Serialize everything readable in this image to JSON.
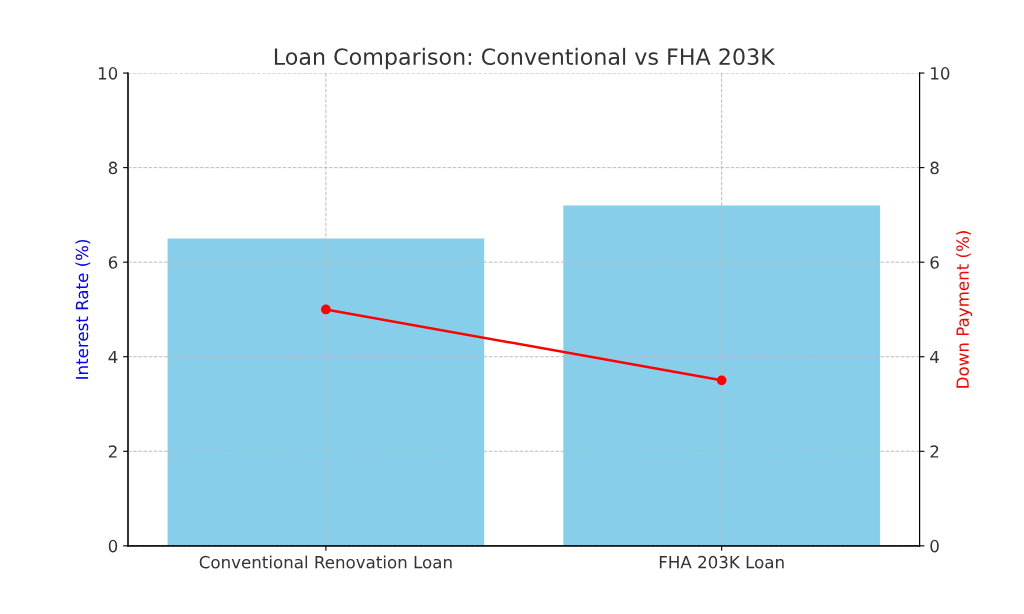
{
  "chart_data": {
    "type": "bar",
    "title": "Loan Comparison: Conventional vs FHA 203K",
    "categories": [
      "Conventional Renovation Loan",
      "FHA 203K Loan"
    ],
    "ylabel": "Interest Rate (%)",
    "y2label": "Down Payment (%)",
    "series": [
      {
        "name": null,
        "color": "#87ceeb",
        "values": [
          6.5,
          7.2
        ]
      },
      {
        "name": null,
        "type": "line",
        "axis": "y2",
        "color": "#ff0000",
        "values": [
          5.0,
          3.5
        ],
        "marker": "circle",
        "line_style": "solid"
      }
    ],
    "ylim": [
      0,
      10
    ],
    "yticks": [
      0,
      2,
      4,
      6,
      8,
      10
    ],
    "y2lim": [
      0,
      10
    ],
    "y2ticks": [
      0,
      2,
      4,
      6,
      8,
      10
    ],
    "grid": true
  }
}
